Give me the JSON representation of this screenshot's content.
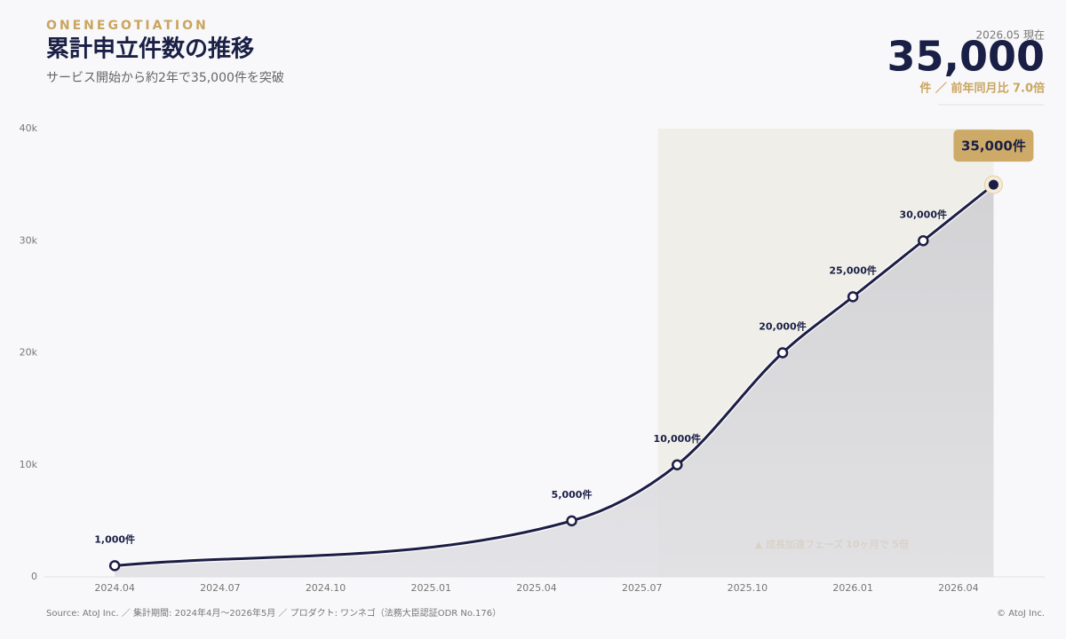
{
  "header": {
    "brand": "ONENEGOTIATION",
    "title": "累計申立件数の推移",
    "subtitle": "サービス開始から約2年で35,000件を突破"
  },
  "kpi": {
    "as_of": "2026.05 現在",
    "value": "35,000",
    "note": "件 ／ 前年同月比 7.0倍"
  },
  "chart_data": {
    "type": "line",
    "x": [
      "2024.04",
      "2025.05",
      "2025.08",
      "2025.11",
      "2026.01",
      "2026.03",
      "2026.05"
    ],
    "series": [
      {
        "name": "累計申立件数",
        "color": "#1c1d45",
        "values": [
          1000,
          5000,
          10000,
          20000,
          25000,
          30000,
          35000
        ],
        "value_labels": [
          "1,000件",
          "5,000件",
          "10,000件",
          "20,000件",
          "25,000件",
          "30,000件",
          "35,000件"
        ]
      }
    ],
    "xlim": [
      "2024.02",
      "2026.06"
    ],
    "xticks": [
      "2024.04",
      "2024.07",
      "2024.10",
      "2025.01",
      "2025.04",
      "2025.07",
      "2025.10",
      "2026.01",
      "2026.04"
    ],
    "ylim": [
      0,
      40000
    ],
    "yticks": [
      0,
      {
        "value": 10000,
        "label": "10k"
      },
      {
        "value": 20000,
        "label": "20k"
      },
      {
        "value": 30000,
        "label": "30k"
      },
      {
        "value": 40000,
        "label": "40k"
      }
    ],
    "highlight": {
      "from": "2025.07",
      "to": "2026.05",
      "label": "▲ 成長加速フェーズ",
      "note": "10ヶ月で 5倍"
    },
    "grid": false
  },
  "footer": {
    "source": "Source: AtoJ Inc. ／ 集計期間: 2024年4月〜2026年5月 ／ プロダクト: ワンネゴ（法務大臣認証ODR No.176）",
    "copyright": "© AtoJ Inc."
  }
}
